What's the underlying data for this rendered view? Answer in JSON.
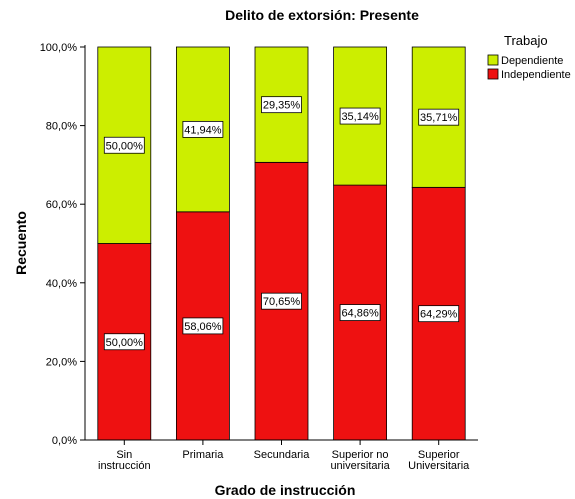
{
  "chart_data": {
    "type": "bar",
    "stacked": true,
    "title": "Delito de extorsión: Presente",
    "xlabel": "Grado de instrucción",
    "ylabel": "Recuento",
    "ylim": [
      0,
      100
    ],
    "yticks": [
      "0,0%",
      "20,0%",
      "40,0%",
      "60,0%",
      "80,0%",
      "100,0%"
    ],
    "categories": [
      [
        "Sin",
        "instrucción"
      ],
      [
        "Primaria"
      ],
      [
        "Secundaria"
      ],
      [
        "Superior no",
        "universitaria"
      ],
      [
        "Superior",
        "Universitaria"
      ]
    ],
    "legend_title": "Trabajo",
    "legend_position": "right",
    "series": [
      {
        "name": "Independiente",
        "color": "#ee1111",
        "values": [
          50.0,
          58.06,
          70.65,
          64.86,
          64.29
        ],
        "labels": [
          "50,00%",
          "58,06%",
          "70,65%",
          "64,86%",
          "64,29%"
        ]
      },
      {
        "name": "Dependiente",
        "color": "#ccee00",
        "values": [
          50.0,
          41.94,
          29.35,
          35.14,
          35.71
        ],
        "labels": [
          "50,00%",
          "41,94%",
          "29,35%",
          "35,14%",
          "35,71%"
        ]
      }
    ],
    "legend_order": [
      "Dependiente",
      "Independiente"
    ]
  }
}
